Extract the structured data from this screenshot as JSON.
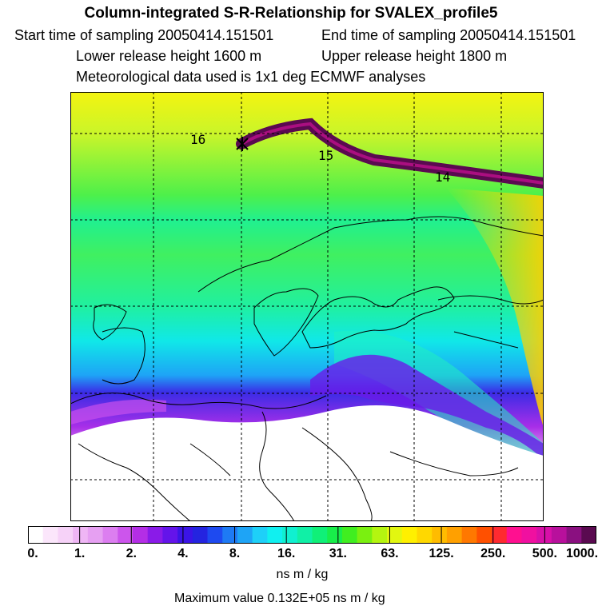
{
  "header": {
    "title": "Column-integrated S-R-Relationship for SVALEX_profile5",
    "start": "Start time of sampling 20050414.151501",
    "end": "End time of sampling 20050414.151501",
    "lower": "Lower release height 1600 m",
    "upper": "Upper release height 1800 m",
    "met": "Meteorological data used is 1x1 deg ECMWF analyses"
  },
  "map": {
    "trajectory_labels": [
      "16",
      "15",
      "14"
    ],
    "release_marker": "*"
  },
  "colorbar": {
    "tick_labels": [
      "0.",
      "1.",
      "2.",
      "4.",
      "8.",
      "16.",
      "31.",
      "63.",
      "125.",
      "250.",
      "500.",
      "1000."
    ],
    "colors": [
      "#ffffff",
      "#fbe6fb",
      "#f6d2f8",
      "#efb6f5",
      "#e6a0f2",
      "#dc7ef0",
      "#cc55ec",
      "#b42ee6",
      "#8a1be8",
      "#6414ea",
      "#3b14e6",
      "#2424e0",
      "#1e4af0",
      "#1e7af4",
      "#1ea4f6",
      "#1ed0f8",
      "#10f0f0",
      "#10f0d0",
      "#10f0a6",
      "#10f078",
      "#18ee4a",
      "#40ee20",
      "#7af010",
      "#b4f510",
      "#e2f710",
      "#fff000",
      "#ffd800",
      "#ffbc00",
      "#ffa000",
      "#ff7800",
      "#ff5000",
      "#ff2a30",
      "#ff1090",
      "#f010a0",
      "#d810a8",
      "#b8109c",
      "#8a1080",
      "#5a0a50"
    ],
    "units": "ns m / kg"
  },
  "footer": {
    "max_value": "Maximum value  0.132E+05 ns m / kg"
  }
}
